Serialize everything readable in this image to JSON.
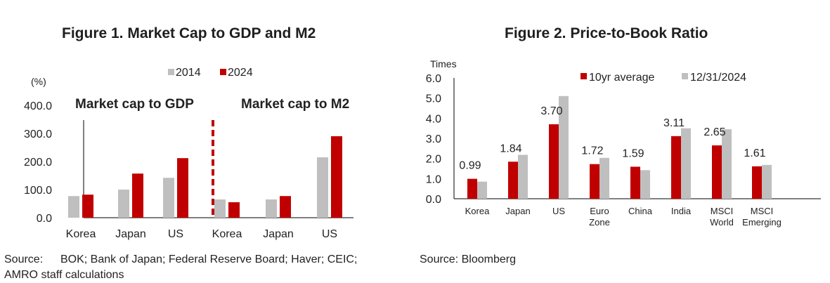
{
  "chart_data": [
    {
      "type": "bar",
      "title": "Figure 1. Market Cap to GDP and M2",
      "ylabel": "(%)",
      "xlabel": "",
      "ylim": [
        0,
        400
      ],
      "yticks": [
        "0.0",
        "100.0",
        "200.0",
        "300.0",
        "400.0"
      ],
      "legend_position": "top-center",
      "panels": [
        {
          "label": "Market cap to GDP",
          "categories": [
            "Korea",
            "Japan",
            "US"
          ]
        },
        {
          "label": "Market cap to M2",
          "categories": [
            "Korea",
            "Japan",
            "US"
          ]
        }
      ],
      "categories": [
        "Korea",
        "Japan",
        "US",
        "Korea",
        "Japan",
        "US"
      ],
      "series": [
        {
          "name": "2014",
          "color": "#bfbfbf",
          "values": [
            77,
            100,
            142,
            65,
            65,
            215
          ]
        },
        {
          "name": "2024",
          "color": "#c00000",
          "values": [
            82,
            157,
            212,
            55,
            77,
            290
          ]
        }
      ],
      "divider": {
        "style": "dashed",
        "color": "#c00000"
      },
      "grid": false
    },
    {
      "type": "bar",
      "title": "Figure 2. Price-to-Book Ratio",
      "ylabel": "Times",
      "xlabel": "",
      "ylim": [
        0,
        6
      ],
      "yticks": [
        "0.0",
        "1.0",
        "2.0",
        "3.0",
        "4.0",
        "5.0",
        "6.0"
      ],
      "legend_position": "top-right",
      "categories": [
        [
          "Korea"
        ],
        [
          "Japan"
        ],
        [
          "US"
        ],
        [
          "Euro",
          "Zone"
        ],
        [
          "China"
        ],
        [
          "India"
        ],
        [
          "MSCI",
          "World"
        ],
        [
          "MSCI",
          "Emerging"
        ]
      ],
      "series": [
        {
          "name": "10yr average",
          "color": "#c00000",
          "values": [
            0.99,
            1.84,
            3.7,
            1.72,
            1.59,
            3.11,
            2.65,
            1.61
          ]
        },
        {
          "name": "12/31/2024",
          "color": "#bfbfbf",
          "values": [
            0.85,
            2.18,
            5.1,
            2.03,
            1.42,
            3.5,
            3.45,
            1.68
          ]
        }
      ],
      "data_labels": [
        "0.99",
        "1.84",
        "3.70",
        "1.72",
        "1.59",
        "3.11",
        "2.65",
        "1.61"
      ],
      "grid": false
    }
  ],
  "sources": {
    "fig1_label": "Source:",
    "fig1_text": "BOK; Bank of Japan; Federal Reserve Board; Haver; CEIC;",
    "fig1_text2": "AMRO staff calculations",
    "fig2": "Source: Bloomberg"
  }
}
